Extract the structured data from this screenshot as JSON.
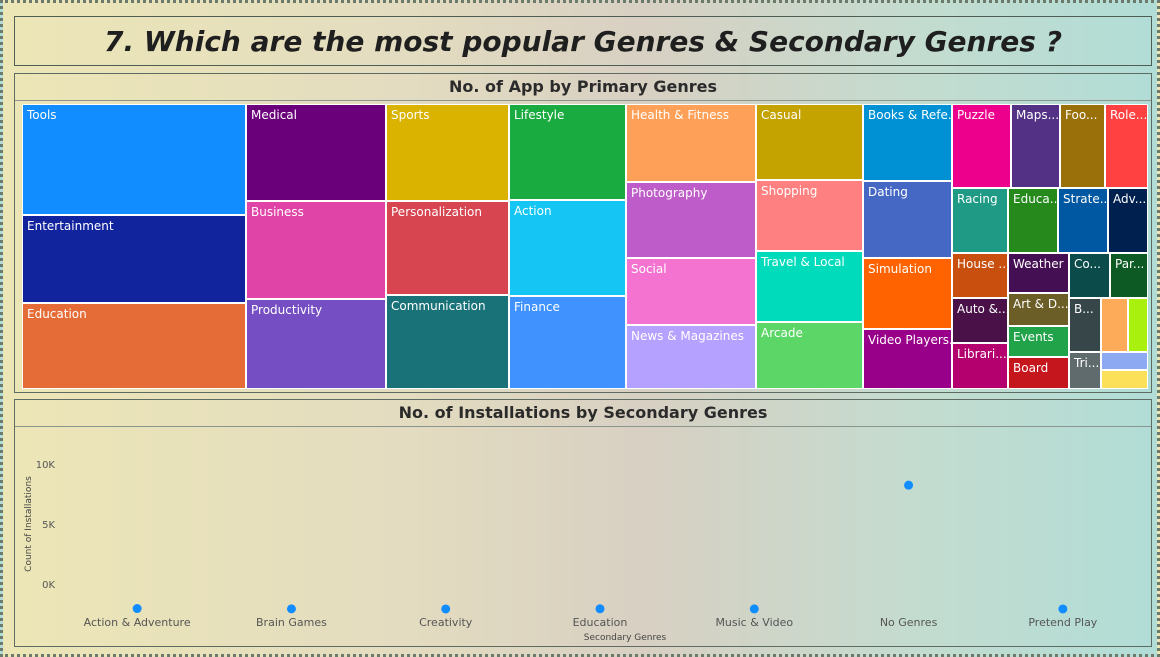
{
  "page_title": "7. Which are the most popular Genres & Secondary Genres ?",
  "chart_data": [
    {
      "type": "treemap",
      "title": "No. of App by Primary Genres",
      "items": [
        {
          "label": "Tools",
          "color": "#118DFF"
        },
        {
          "label": "Entertainment",
          "color": "#12239E"
        },
        {
          "label": "Education",
          "color": "#E66C37"
        },
        {
          "label": "Medical",
          "color": "#6B007B"
        },
        {
          "label": "Business",
          "color": "#E044A7"
        },
        {
          "label": "Productivity",
          "color": "#744EC2"
        },
        {
          "label": "Sports",
          "color": "#D9B300"
        },
        {
          "label": "Personalization",
          "color": "#D64550"
        },
        {
          "label": "Communication",
          "color": "#197278"
        },
        {
          "label": "Lifestyle",
          "color": "#1AAB40"
        },
        {
          "label": "Action",
          "color": "#15C6F4"
        },
        {
          "label": "Finance",
          "color": "#4092FF"
        },
        {
          "label": "Health & Fitness",
          "color": "#FFA058"
        },
        {
          "label": "Photography",
          "color": "#BE5DC9"
        },
        {
          "label": "Social",
          "color": "#F472D0"
        },
        {
          "label": "News & Magazines",
          "color": "#B5A1FF"
        },
        {
          "label": "Casual",
          "color": "#C4A200"
        },
        {
          "label": "Shopping",
          "color": "#FF8080"
        },
        {
          "label": "Travel & Local",
          "color": "#00DBBC"
        },
        {
          "label": "Arcade",
          "color": "#5BD667"
        },
        {
          "label": "Books & Refe...",
          "color": "#0091D5"
        },
        {
          "label": "Dating",
          "color": "#4668C5"
        },
        {
          "label": "Simulation",
          "color": "#FF6300"
        },
        {
          "label": "Video Players...",
          "color": "#99008A"
        },
        {
          "label": "Puzzle",
          "color": "#EC008C"
        },
        {
          "label": "Maps...",
          "color": "#533285"
        },
        {
          "label": "Foo...",
          "color": "#99700A"
        },
        {
          "label": "Role...",
          "color": "#FF4141"
        },
        {
          "label": "Racing",
          "color": "#1F9A85"
        },
        {
          "label": "Educa...",
          "color": "#25891C"
        },
        {
          "label": "Strate...",
          "color": "#0057A2"
        },
        {
          "label": "Adv...",
          "color": "#002050"
        },
        {
          "label": "House ...",
          "color": "#C94F0F"
        },
        {
          "label": "Weather",
          "color": "#450F54"
        },
        {
          "label": "Co...",
          "color": "#0B4B49"
        },
        {
          "label": "Par...",
          "color": "#0E5A24"
        },
        {
          "label": "Auto &...",
          "color": "#4A1048"
        },
        {
          "label": "Art & D...",
          "color": "#6B5E27"
        },
        {
          "label": "Events",
          "color": "#21A34A"
        },
        {
          "label": "Librari...",
          "color": "#B3006E"
        },
        {
          "label": "Board",
          "color": "#C4161C"
        },
        {
          "label": "B...",
          "color": "#374649"
        },
        {
          "label": "Tri...",
          "color": "#5F6B6D"
        },
        {
          "label": "",
          "color": "#FDAB59"
        },
        {
          "label": "",
          "color": "#A9F00F"
        },
        {
          "label": "",
          "color": "#8DA9F1"
        },
        {
          "label": "",
          "color": "#FDE05A"
        }
      ]
    },
    {
      "type": "scatter",
      "title": "No. of Installations by Secondary Genres",
      "xlabel": "Secondary Genres",
      "ylabel": "Count of Installations",
      "ylim": [
        0,
        10000
      ],
      "yticks": [
        {
          "v": 0,
          "label": "0K"
        },
        {
          "v": 5000,
          "label": "5K"
        },
        {
          "v": 10000,
          "label": "10K"
        }
      ],
      "categories": [
        "Action & Adventure",
        "Brain Games",
        "Creativity",
        "Education",
        "Music & Video",
        "No Genres",
        "Pretend Play"
      ],
      "values": [
        40,
        10,
        5,
        20,
        8,
        10300,
        5
      ],
      "point_color": "#118DFF",
      "grid": false
    }
  ]
}
